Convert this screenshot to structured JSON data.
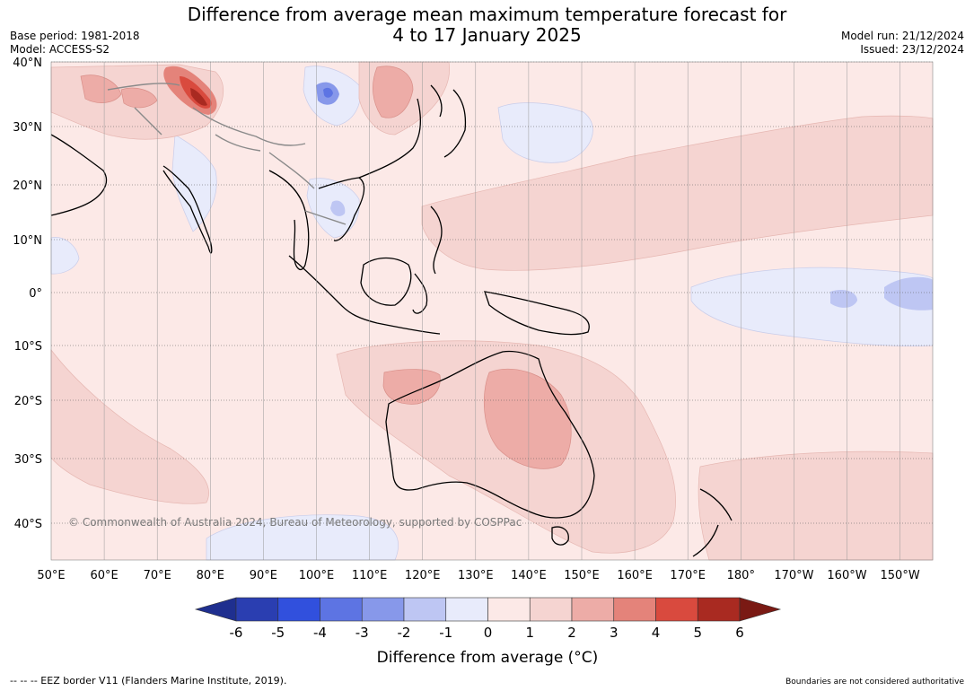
{
  "header": {
    "title_line1": "Difference from average mean maximum temperature forecast for",
    "title_line2": "4 to 17 January 2025",
    "base_period": "Base period: 1981-2018",
    "model": "Model: ACCESS-S2",
    "model_run": "Model run: 21/12/2024",
    "issued": "Issued: 23/12/2024"
  },
  "map": {
    "lat_labels": [
      "40°N",
      "30°N",
      "20°N",
      "10°N",
      "0°",
      "10°S",
      "20°S",
      "30°S",
      "40°S"
    ],
    "lon_labels": [
      "50°E",
      "60°E",
      "70°E",
      "80°E",
      "90°E",
      "100°E",
      "110°E",
      "120°E",
      "130°E",
      "140°E",
      "150°E",
      "160°E",
      "170°E",
      "180°",
      "170°W",
      "160°W",
      "150°W"
    ],
    "copyright": "© Commonwealth of Australia 2024, Bureau of Meteorology, supported by COSPPac"
  },
  "colorbar": {
    "ticks": [
      "-6",
      "-5",
      "-4",
      "-3",
      "-2",
      "-1",
      "0",
      "1",
      "2",
      "3",
      "4",
      "5",
      "6"
    ],
    "label": "Difference from average (°C)",
    "colors": [
      "#1f2f8f",
      "#2a3eb1",
      "#3150dd",
      "#5d74e3",
      "#8798ea",
      "#bec6f3",
      "#e8ebfb",
      "#fce9e7",
      "#f5d4d1",
      "#edaca7",
      "#e4837a",
      "#d94a3e",
      "#a92a21",
      "#7a1a14"
    ]
  },
  "footer": {
    "left": "--  --  -- EEZ border V11 (Flanders Marine Institute, 2019).",
    "right": "Boundaries are not considered authoritative"
  }
}
